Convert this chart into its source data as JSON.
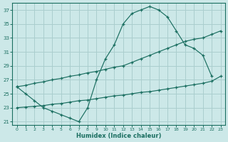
{
  "bg_color": "#cce8e8",
  "grid_color": "#aacece",
  "line_color": "#1a6e60",
  "xlabel": "Humidex (Indice chaleur)",
  "xlim": [
    -0.5,
    23.5
  ],
  "ylim": [
    20.5,
    38.0
  ],
  "xticks": [
    0,
    1,
    2,
    3,
    4,
    5,
    6,
    7,
    8,
    9,
    10,
    11,
    12,
    13,
    14,
    15,
    16,
    17,
    18,
    19,
    20,
    21,
    22,
    23
  ],
  "yticks": [
    21,
    23,
    25,
    27,
    29,
    31,
    33,
    35,
    37
  ],
  "line_top_x": [
    0,
    1,
    2,
    3,
    4,
    5,
    6,
    7,
    8,
    9,
    10,
    11,
    12,
    13,
    14,
    15,
    16,
    17,
    18,
    19,
    20,
    21,
    22
  ],
  "line_top_y": [
    26,
    25,
    24,
    23,
    22.5,
    22,
    21.5,
    21,
    23,
    27,
    30,
    32,
    35,
    36.5,
    37,
    37.5,
    37,
    36,
    34,
    32,
    31.5,
    30.5,
    27.5
  ],
  "line_mid_x": [
    0,
    1,
    2,
    3,
    4,
    5,
    6,
    7,
    8,
    9,
    10,
    11,
    12,
    13,
    14,
    15,
    16,
    17,
    18,
    19,
    20,
    21,
    22,
    23
  ],
  "line_mid_y": [
    26,
    26.2,
    26.5,
    26.7,
    27,
    27.2,
    27.5,
    27.7,
    28,
    28.2,
    28.5,
    28.8,
    29,
    29.5,
    30,
    30.5,
    31,
    31.5,
    32,
    32.5,
    32.8,
    33,
    33.5,
    34
  ],
  "line_bot_x": [
    0,
    1,
    2,
    3,
    4,
    5,
    6,
    7,
    8,
    9,
    10,
    11,
    12,
    13,
    14,
    15,
    16,
    17,
    18,
    19,
    20,
    21,
    22,
    23
  ],
  "line_bot_y": [
    23,
    23.1,
    23.2,
    23.3,
    23.5,
    23.6,
    23.8,
    24,
    24.1,
    24.3,
    24.5,
    24.7,
    24.8,
    25,
    25.2,
    25.3,
    25.5,
    25.7,
    25.9,
    26.1,
    26.3,
    26.5,
    26.8,
    27.5
  ]
}
